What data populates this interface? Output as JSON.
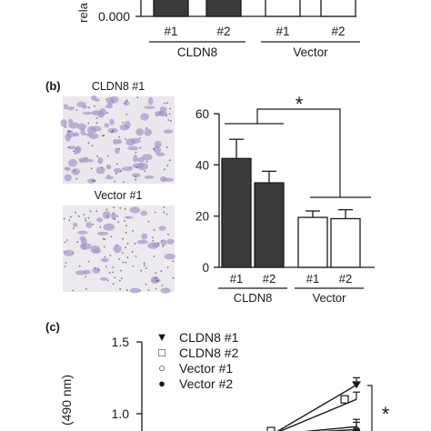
{
  "chart_data": [
    {
      "panel": "",
      "type": "bar",
      "categories": [
        "#1",
        "#2",
        "#1",
        "#2"
      ],
      "groups": [
        {
          "label": "CLDN8",
          "members": [
            0,
            1
          ]
        },
        {
          "label": "Vector",
          "members": [
            2,
            3
          ]
        }
      ],
      "values": [
        null,
        null,
        null,
        null
      ],
      "fills": [
        "#3a3a3a",
        "#3a3a3a",
        "#ffffff",
        "#ffffff"
      ],
      "ylabel": "rela",
      "yticks": [
        "0.000"
      ]
    },
    {
      "panel": "(b)",
      "type": "bar",
      "image_labels": [
        "CLDN8 #1",
        "Vector #1"
      ],
      "categories": [
        "#1",
        "#2",
        "#1",
        "#2"
      ],
      "groups": [
        {
          "label": "CLDN8",
          "members": [
            0,
            1
          ]
        },
        {
          "label": "Vector",
          "members": [
            2,
            3
          ]
        }
      ],
      "values": [
        42.5,
        33,
        19.5,
        19
      ],
      "errors": [
        7.5,
        4.5,
        2.5,
        3.5
      ],
      "fills": [
        "#3a3a3a",
        "#3a3a3a",
        "#ffffff",
        "#ffffff"
      ],
      "ylim": [
        0,
        60
      ],
      "yticks": [
        0,
        20,
        40,
        60
      ],
      "significance": "*"
    },
    {
      "panel": "(c)",
      "type": "line",
      "ylabel": "(490 nm)",
      "ylim_visible": [
        0.85,
        1.5
      ],
      "yticks": [
        "1.0",
        "1.5"
      ],
      "series": [
        {
          "name": "CLDN8 #1",
          "marker": "▼",
          "y_last": 1.2
        },
        {
          "name": "CLDN8 #2",
          "marker": "□",
          "y_last": 1.1
        },
        {
          "name": "Vector #1",
          "marker": "○",
          "y_last": 0.91
        },
        {
          "name": "Vector #2",
          "marker": "●",
          "y_last": 0.89
        }
      ],
      "significance": "*"
    }
  ]
}
